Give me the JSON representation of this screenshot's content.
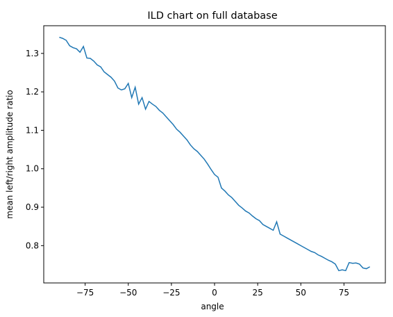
{
  "chart_data": {
    "type": "line",
    "title": "ILD chart on full database",
    "xlabel": "angle",
    "ylabel": "mean left/right amplitude ratio",
    "x": [
      -90,
      -88,
      -86,
      -84,
      -82,
      -80,
      -78,
      -76,
      -74,
      -72,
      -70,
      -68,
      -66,
      -64,
      -62,
      -60,
      -58,
      -56,
      -54,
      -52,
      -50,
      -48,
      -46,
      -44,
      -42,
      -40,
      -38,
      -36,
      -34,
      -32,
      -30,
      -28,
      -26,
      -24,
      -22,
      -20,
      -18,
      -16,
      -14,
      -12,
      -10,
      -8,
      -6,
      -4,
      -2,
      0,
      2,
      4,
      6,
      8,
      10,
      12,
      14,
      16,
      18,
      20,
      22,
      24,
      26,
      28,
      30,
      32,
      34,
      36,
      38,
      40,
      42,
      44,
      46,
      48,
      50,
      52,
      54,
      56,
      58,
      60,
      62,
      64,
      66,
      68,
      70,
      72,
      74,
      76,
      78,
      80,
      82,
      84,
      86,
      88,
      90
    ],
    "series": [
      {
        "name": "ILD",
        "color": "#1f77b4",
        "values": [
          1.342,
          1.339,
          1.334,
          1.32,
          1.315,
          1.312,
          1.303,
          1.318,
          1.288,
          1.287,
          1.28,
          1.27,
          1.265,
          1.252,
          1.245,
          1.238,
          1.228,
          1.21,
          1.205,
          1.208,
          1.222,
          1.185,
          1.212,
          1.168,
          1.185,
          1.155,
          1.175,
          1.168,
          1.162,
          1.152,
          1.145,
          1.135,
          1.125,
          1.115,
          1.103,
          1.095,
          1.085,
          1.075,
          1.062,
          1.052,
          1.045,
          1.035,
          1.025,
          1.012,
          0.998,
          0.985,
          0.978,
          0.95,
          0.942,
          0.932,
          0.925,
          0.915,
          0.905,
          0.898,
          0.89,
          0.885,
          0.877,
          0.87,
          0.865,
          0.855,
          0.85,
          0.845,
          0.84,
          0.862,
          0.83,
          0.825,
          0.82,
          0.815,
          0.81,
          0.805,
          0.8,
          0.795,
          0.79,
          0.785,
          0.782,
          0.776,
          0.772,
          0.767,
          0.762,
          0.758,
          0.752,
          0.735,
          0.737,
          0.735,
          0.756,
          0.754,
          0.755,
          0.752,
          0.742,
          0.74,
          0.745
        ]
      }
    ],
    "xlim": [
      -99,
      99
    ],
    "ylim": [
      0.703,
      1.372
    ],
    "xticks": [
      {
        "value": -75,
        "label": "−75"
      },
      {
        "value": -50,
        "label": "−50"
      },
      {
        "value": -25,
        "label": "−25"
      },
      0,
      25,
      50,
      75
    ],
    "yticks": [
      0.8,
      0.9,
      {
        "value": 1.0,
        "label": "1.0"
      },
      1.1,
      1.2,
      1.3
    ]
  }
}
